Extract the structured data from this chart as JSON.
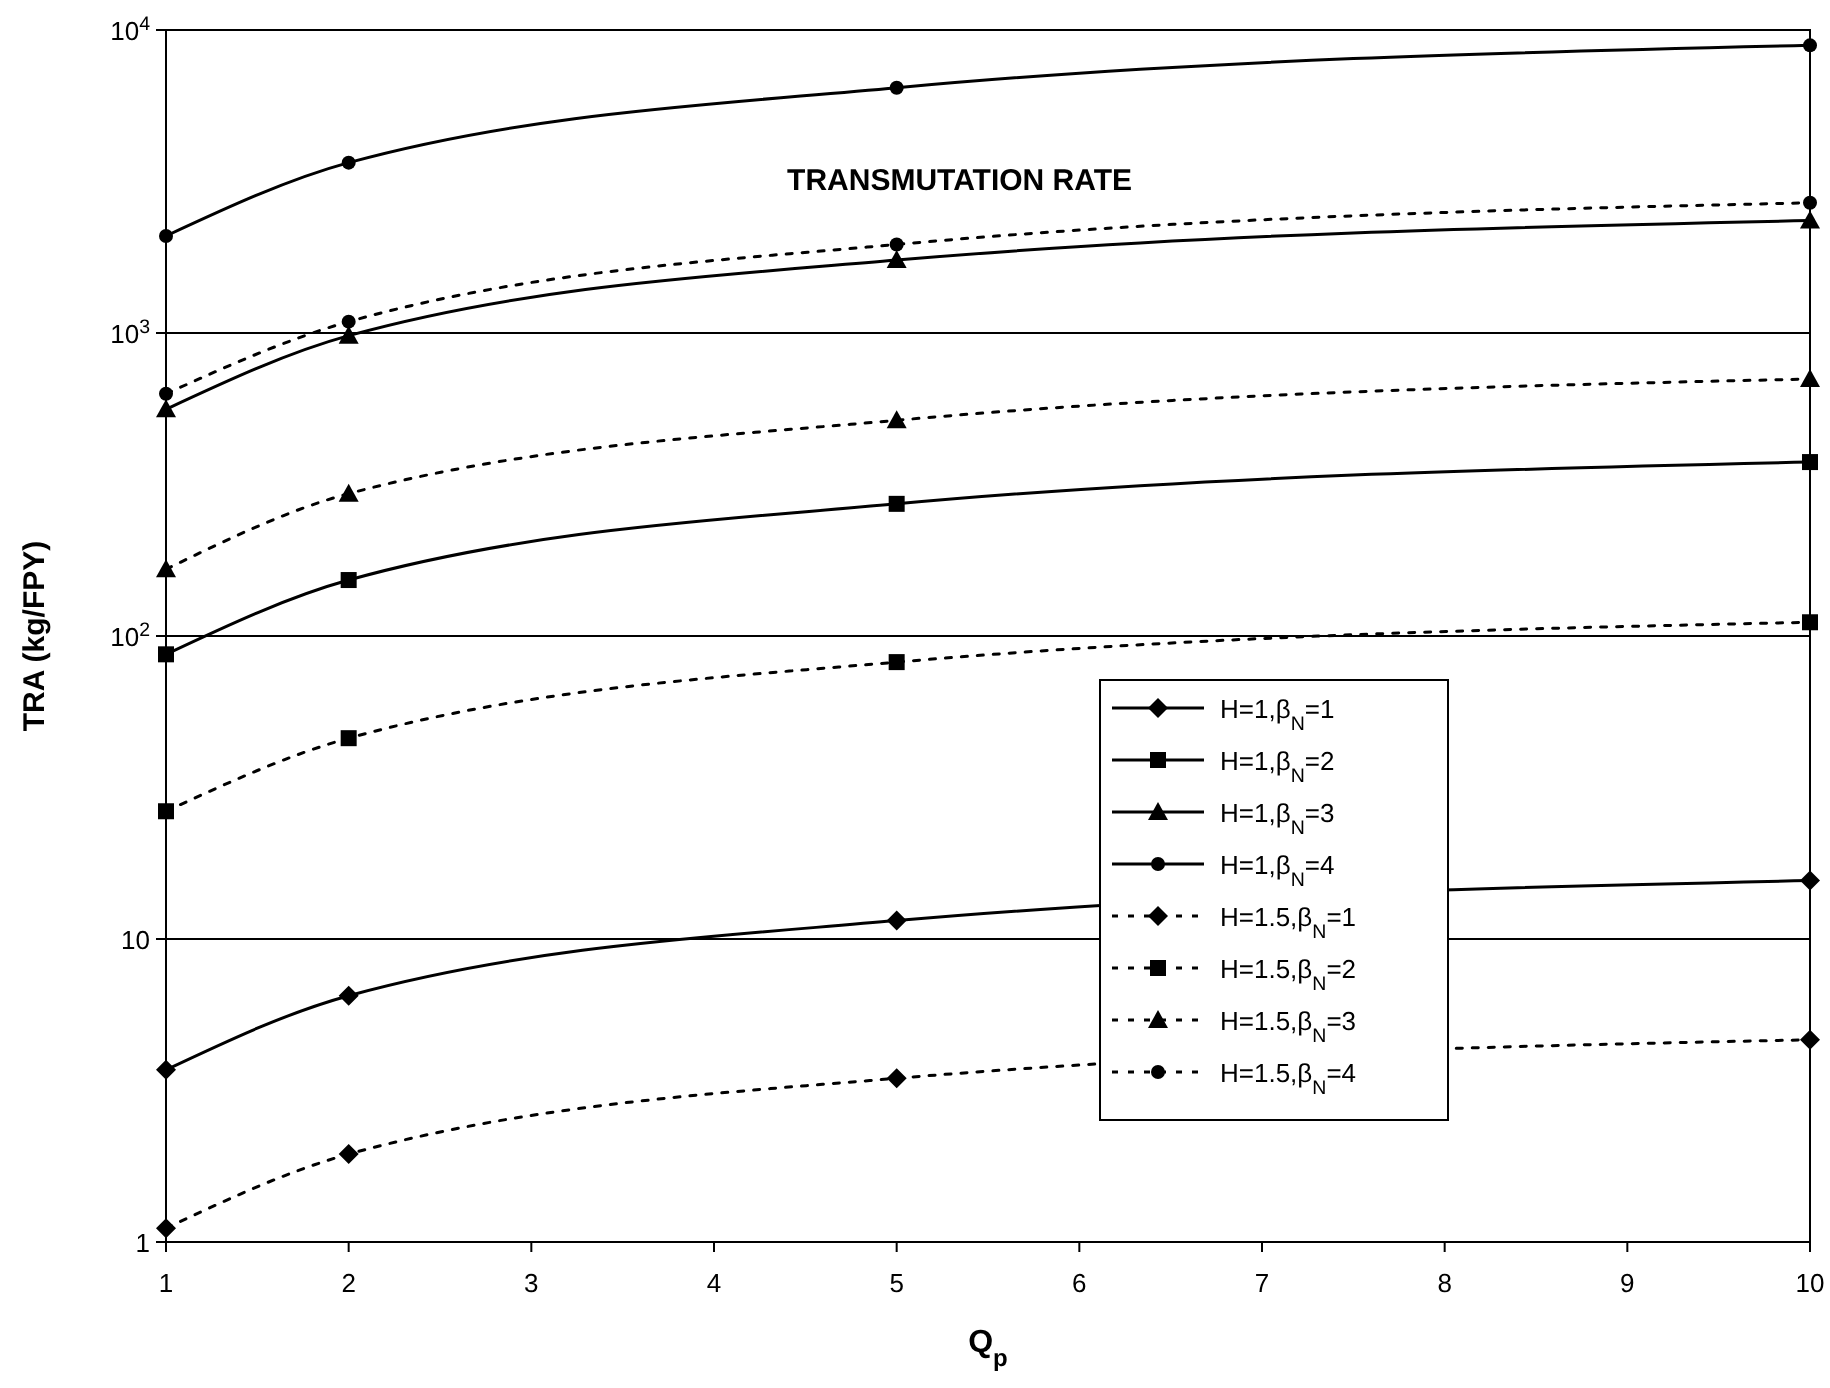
{
  "chart_data": {
    "type": "line",
    "title": "TRANSMUTATION RATE",
    "xlabel": "Q$_{p}$",
    "ylabel": "TRA (kg/FPY)",
    "x": [
      1,
      2,
      5,
      10
    ],
    "xlim": [
      1,
      10
    ],
    "xticks": [
      1,
      2,
      3,
      4,
      5,
      6,
      7,
      8,
      9,
      10
    ],
    "ylim": [
      1,
      10000
    ],
    "yticks": [
      1,
      10,
      {
        "value": 100,
        "label": "10$^{2}$"
      },
      {
        "value": 1000,
        "label": "10$^{3}$"
      },
      {
        "value": 10000,
        "label": "10$^{4}$"
      }
    ],
    "log": "y",
    "grid": "y",
    "legend": "right",
    "series": [
      {
        "name": "H=1,β$_{N}$=1",
        "color": "#000000",
        "marker": "diamond",
        "line_style": "solid",
        "values": [
          3.7,
          6.5,
          11.5,
          15.6
        ]
      },
      {
        "name": "H=1,β$_{N}$=2",
        "color": "#000000",
        "marker": "square",
        "line_style": "solid",
        "values": [
          87,
          153,
          273,
          375
        ]
      },
      {
        "name": "H=1,β$_{N}$=3",
        "color": "#000000",
        "marker": "triangle",
        "line_style": "solid",
        "values": [
          560,
          980,
          1740,
          2350
        ]
      },
      {
        "name": "H=1,β$_{N}$=4",
        "color": "#000000",
        "marker": "circle",
        "line_style": "solid",
        "values": [
          2090,
          3650,
          6450,
          8900
        ]
      },
      {
        "name": "H=1.5,β$_{N}$=1",
        "color": "#000000",
        "marker": "diamond",
        "line_style": "dotted",
        "values": [
          1.11,
          1.95,
          3.47,
          4.65
        ]
      },
      {
        "name": "H=1.5,β$_{N}$=2",
        "color": "#000000",
        "marker": "square",
        "line_style": "dotted",
        "values": [
          26.4,
          46,
          82,
          111
        ]
      },
      {
        "name": "H=1.5,β$_{N}$=3",
        "color": "#000000",
        "marker": "triangle",
        "line_style": "dotted",
        "values": [
          166,
          295,
          515,
          705
        ]
      },
      {
        "name": "H=1.5,β$_{N}$=4",
        "color": "#000000",
        "marker": "circle",
        "line_style": "dotted",
        "values": [
          630,
          1090,
          1960,
          2690
        ]
      }
    ]
  }
}
